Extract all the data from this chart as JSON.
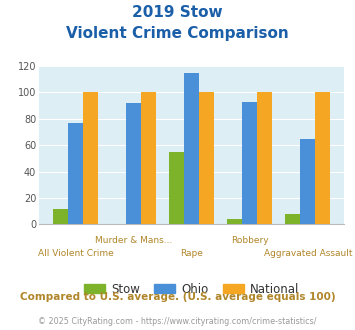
{
  "title_line1": "2019 Stow",
  "title_line2": "Violent Crime Comparison",
  "categories": [
    "All Violent Crime",
    "Murder & Mans...",
    "Rape",
    "Robbery",
    "Aggravated Assault"
  ],
  "stow": [
    12,
    0,
    55,
    4,
    8
  ],
  "ohio": [
    77,
    92,
    115,
    93,
    65
  ],
  "national": [
    100,
    100,
    100,
    100,
    100
  ],
  "stow_color": "#7db32a",
  "ohio_color": "#4a90d9",
  "national_color": "#f5a623",
  "bg_color": "#ddeef5",
  "ylim": [
    0,
    120
  ],
  "yticks": [
    0,
    20,
    40,
    60,
    80,
    100,
    120
  ],
  "title_color": "#1a5fa8",
  "footnote": "Compared to U.S. average. (U.S. average equals 100)",
  "copyright": "© 2025 CityRating.com - https://www.cityrating.com/crime-statistics/",
  "footnote_color": "#b0862a",
  "copyright_color": "#999999",
  "bar_width": 0.26
}
